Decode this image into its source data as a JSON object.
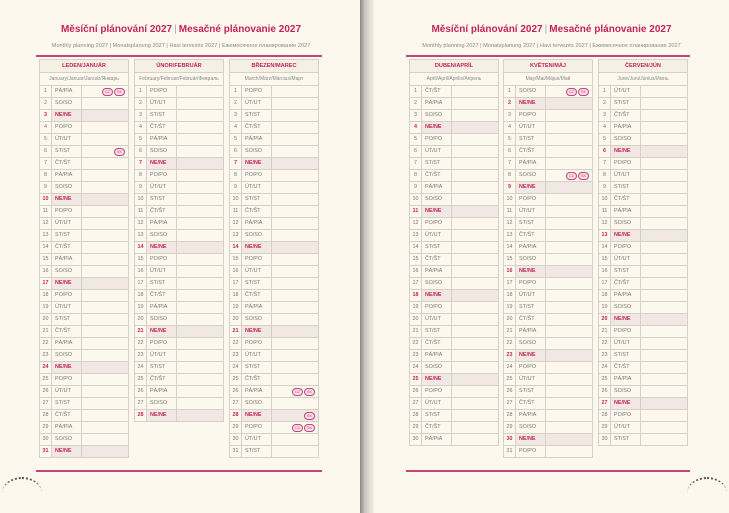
{
  "weekday_labels": [
    "PO/PO",
    "ÚT/UT",
    "ST/ST",
    "ČT/ŠT",
    "PÁ/PIA",
    "SO/SO",
    "NE/NE"
  ],
  "colors": {
    "accent": "#c3245a",
    "sunday_bg": "#f1e8e4",
    "paper": "#fcf8ee"
  },
  "pages": [
    {
      "title_cz": "Měsíční plánování 2027",
      "title_sk": "Mesačné plánovanie 2027",
      "separator": "|",
      "subtitle": "Monthly planning 2027 | Monatsplanung 2027 | Havi tervezés 2027 | Ежемесячное планирование 2027",
      "months": [
        {
          "name": "LEDEN/JANUÁR",
          "sub": "January/Januar/Január/Январь",
          "start": 4,
          "length": 31,
          "holidays": {
            "1": [
              "CZ",
              "SK"
            ],
            "6": [
              "SK"
            ]
          }
        },
        {
          "name": "ÚNOR/FEBRUÁR",
          "sub": "February/Februar/Február/Февраль",
          "start": 0,
          "length": 28,
          "holidays": {}
        },
        {
          "name": "BŘEZEN/MAREC",
          "sub": "March/März/Március/Март",
          "start": 0,
          "length": 31,
          "holidays": {
            "26": [
              "CZ",
              "SK"
            ],
            "28": [
              "SK"
            ],
            "29": [
              "CZ",
              "SK"
            ]
          }
        }
      ]
    },
    {
      "title_cz": "Měsíční plánování 2027",
      "title_sk": "Mesačné plánovanie 2027",
      "separator": "|",
      "subtitle": "Monthly planning 2027 | Monatsplanung 2027 | Havi tervezés 2027 | Ежемесячное планирование 2027",
      "months": [
        {
          "name": "DUBEN/APRÍL",
          "sub": "April/April/Április/Апрель",
          "start": 3,
          "length": 30,
          "holidays": {}
        },
        {
          "name": "KVĚTEN/MÁJ",
          "sub": "May/Mai/Május/Май",
          "start": 5,
          "length": 31,
          "holidays": {
            "1": [
              "CZ",
              "SK"
            ],
            "8": [
              "CZ",
              "SK"
            ]
          }
        },
        {
          "name": "ČERVEN/JÚN",
          "sub": "June/Juni/Június/Июнь",
          "start": 1,
          "length": 30,
          "holidays": {}
        }
      ]
    }
  ]
}
